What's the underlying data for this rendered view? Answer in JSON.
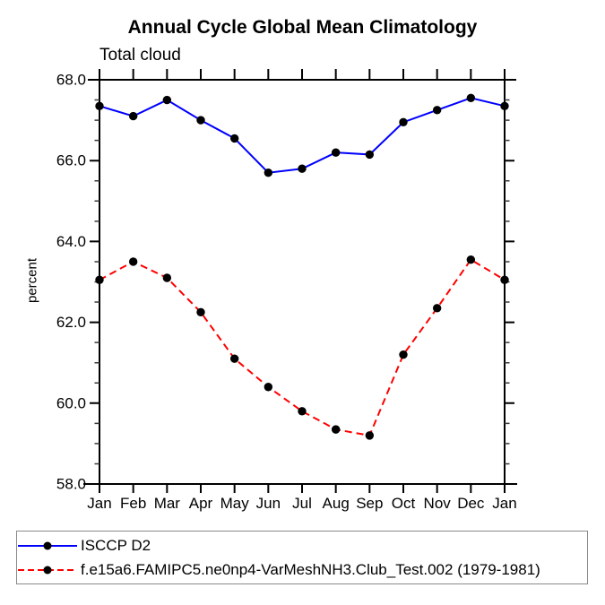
{
  "chart_data": {
    "type": "line",
    "title": "Annual Cycle Global Mean Climatology",
    "subtitle": "Total cloud",
    "ylabel": "percent",
    "xlabel": "",
    "x_categories": [
      "Jan",
      "Feb",
      "Mar",
      "Apr",
      "May",
      "Jun",
      "Jul",
      "Aug",
      "Sep",
      "Oct",
      "Nov",
      "Dec",
      "Jan"
    ],
    "ylim": [
      58.0,
      68.0
    ],
    "yticks": {
      "major": [
        58,
        60,
        62,
        64,
        66,
        68
      ],
      "major_labels": [
        "58.0",
        "60.0",
        "62.0",
        "64.0",
        "66.0",
        "68.0"
      ],
      "minor_step": 0.5
    },
    "grid": "off",
    "legend_position": "bottom",
    "frame_color": "#000000",
    "series": [
      {
        "name": "ISCCP D2",
        "color": "#0000ff",
        "style": "solid",
        "marker": "circle",
        "marker_color": "#000000",
        "values": [
          67.35,
          67.1,
          67.5,
          67.0,
          66.55,
          65.7,
          65.8,
          66.2,
          66.15,
          66.95,
          67.25,
          67.55,
          67.35
        ]
      },
      {
        "name": "f.e15a6.FAMIPC5.ne0np4-VarMeshNH3.Club_Test.002 (1979-1981)",
        "color": "#ff0000",
        "style": "dashed",
        "marker": "circle",
        "marker_color": "#000000",
        "values": [
          63.05,
          63.5,
          63.1,
          62.25,
          61.1,
          60.4,
          59.8,
          59.35,
          59.2,
          61.2,
          62.35,
          63.55,
          63.05
        ]
      }
    ]
  }
}
